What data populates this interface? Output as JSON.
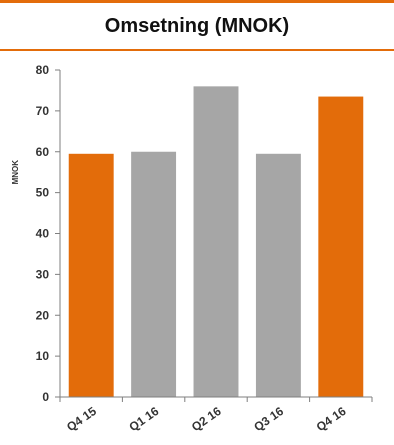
{
  "title": "Omsetning (MNOK)",
  "colors": {
    "accent": "#e36c0a",
    "neutral": "#a6a6a6",
    "axis": "#7f7f7f"
  },
  "chart_data": {
    "type": "bar",
    "categories": [
      "Q4 15",
      "Q1 16",
      "Q2 16",
      "Q3 16",
      "Q4 16"
    ],
    "values": [
      59.5,
      60,
      76,
      59.5,
      73.5
    ],
    "bar_colors": [
      "#e36c0a",
      "#a6a6a6",
      "#a6a6a6",
      "#a6a6a6",
      "#e36c0a"
    ],
    "ylabel": "MNOK",
    "xlabel": "",
    "ylim": [
      0,
      80
    ],
    "yticks": [
      0,
      10,
      20,
      30,
      40,
      50,
      60,
      70,
      80
    ],
    "grid": false,
    "legend": "none"
  }
}
